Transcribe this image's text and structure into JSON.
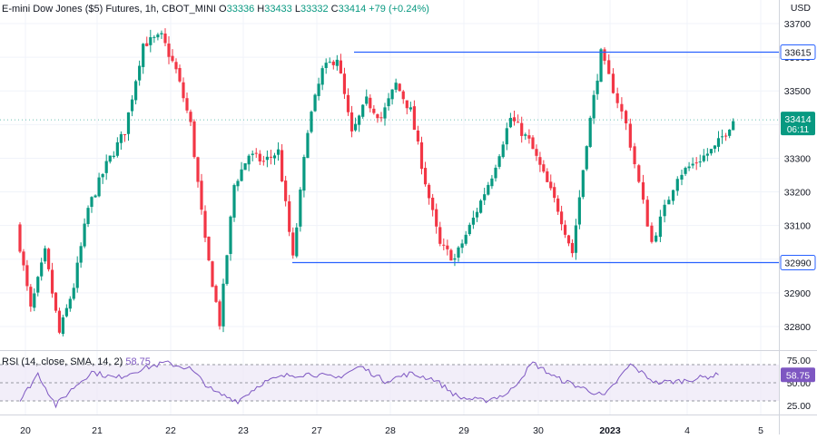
{
  "header": {
    "symbol": "E-mini Dow Jones ($5) Futures, 1h, CBOT_MINI",
    "o_label": "O",
    "o_value": "33336",
    "h_label": "H",
    "h_value": "33433",
    "l_label": "L",
    "l_value": "33332",
    "c_label": "C",
    "c_value": "33414",
    "change": "+79 (+0.24%)"
  },
  "currency": "USD",
  "last_price": {
    "price": "33414",
    "countdown": "06:11"
  },
  "levels": {
    "resistance": "33615",
    "support": "32990"
  },
  "rsi": {
    "label": "RSI (14, close, SMA, 14, 2)",
    "value": "58.75",
    "ticks": [
      "75.00",
      "50.00",
      "25.00"
    ]
  },
  "x_axis": {
    "ticks": [
      "20",
      "21",
      "22",
      "23",
      "27",
      "28",
      "29",
      "30",
      "2023",
      "4",
      "5"
    ]
  },
  "colors": {
    "up": "#089981",
    "down": "#f23645",
    "level_line": "#2962ff",
    "rsi_line": "#7e57c2",
    "rsi_band": "#ede7f6",
    "grid": "#f0f3fa",
    "text": "#131722"
  },
  "chart_data": [
    {
      "type": "candlestick",
      "title": "E-mini Dow Jones ($5) Futures, 1h, CBOT_MINI",
      "ylabel": "USD",
      "ylim": [
        32730,
        33770
      ],
      "y_ticks": [
        33700,
        33600,
        33500,
        33400,
        33300,
        33200,
        33100,
        33000,
        32900,
        32800
      ],
      "x_ticks": [
        "20",
        "21",
        "22",
        "23",
        "27",
        "28",
        "29",
        "30",
        "2023",
        "4",
        "5"
      ],
      "horizontal_lines": [
        {
          "value": 33615,
          "label": "33615"
        },
        {
          "value": 32990,
          "label": "32990"
        }
      ],
      "close_path": [
        [
          "20",
          33100
        ],
        [
          "20",
          32850
        ],
        [
          "20",
          33020
        ],
        [
          "20",
          32780
        ],
        [
          "20",
          32920
        ],
        [
          "21",
          33150
        ],
        [
          "21",
          33280
        ],
        [
          "21",
          33380
        ],
        [
          "21",
          33640
        ],
        [
          "22",
          33660
        ],
        [
          "22",
          33560
        ],
        [
          "22",
          33400
        ],
        [
          "22",
          33050
        ],
        [
          "22",
          32810
        ],
        [
          "23",
          33220
        ],
        [
          "23",
          33310
        ],
        [
          "23",
          33290
        ],
        [
          "23",
          33320
        ],
        [
          "23",
          33000
        ],
        [
          "27",
          33390
        ],
        [
          "27",
          33560
        ],
        [
          "27",
          33600
        ],
        [
          "27",
          33370
        ],
        [
          "27",
          33470
        ],
        [
          "28",
          33420
        ],
        [
          "28",
          33520
        ],
        [
          "28",
          33440
        ],
        [
          "28",
          33230
        ],
        [
          "28",
          33040
        ],
        [
          "29",
          33000
        ],
        [
          "29",
          33120
        ],
        [
          "29",
          33250
        ],
        [
          "29",
          33420
        ],
        [
          "30",
          33350
        ],
        [
          "30",
          33250
        ],
        [
          "30",
          33150
        ],
        [
          "30",
          33020
        ],
        [
          "30",
          33350
        ],
        [
          "2023",
          33610
        ],
        [
          "2023",
          33400
        ],
        [
          "2023",
          33050
        ],
        [
          "4",
          33250
        ],
        [
          "4",
          33290
        ],
        [
          "4",
          33330
        ],
        [
          "4",
          33414
        ]
      ]
    },
    {
      "type": "line",
      "title": "RSI (14, close, SMA, 14, 2)",
      "ylim": [
        15,
        85
      ],
      "y_ticks": [
        75,
        50,
        25
      ],
      "bands": [
        70,
        30
      ],
      "series": [
        {
          "name": "RSI",
          "points": [
            [
              "20",
              30
            ],
            [
              "20",
              60
            ],
            [
              "20",
              25
            ],
            [
              "20",
              45
            ],
            [
              "21",
              62
            ],
            [
              "21",
              55
            ],
            [
              "21",
              65
            ],
            [
              "22",
              72
            ],
            [
              "22",
              66
            ],
            [
              "22",
              40
            ],
            [
              "23",
              30
            ],
            [
              "23",
              50
            ],
            [
              "23",
              58
            ],
            [
              "27",
              60
            ],
            [
              "27",
              55
            ],
            [
              "27",
              68
            ],
            [
              "28",
              52
            ],
            [
              "28",
              60
            ],
            [
              "28",
              54
            ],
            [
              "29",
              34
            ],
            [
              "29",
              30
            ],
            [
              "29",
              38
            ],
            [
              "30",
              72
            ],
            [
              "30",
              55
            ],
            [
              "30",
              45
            ],
            [
              "2023",
              35
            ],
            [
              "2023",
              70
            ],
            [
              "2023",
              50
            ],
            [
              "4",
              52
            ],
            [
              "4",
              58.75
            ]
          ]
        }
      ]
    }
  ]
}
